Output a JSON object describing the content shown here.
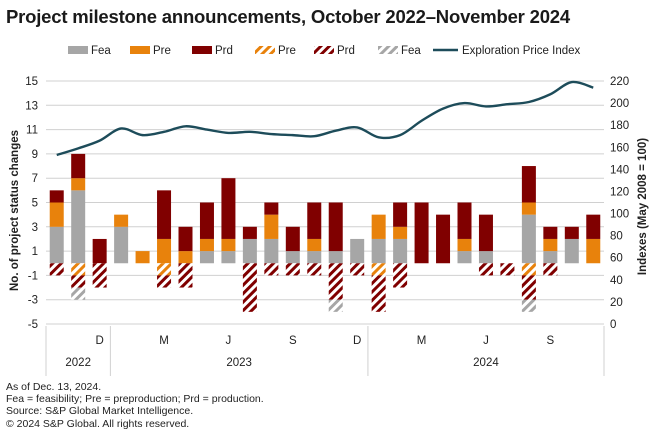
{
  "title": "Project milestone announcements, October 2022–November 2024",
  "colors": {
    "fea": "#a6a6a6",
    "pre": "#e8820c",
    "prd": "#800000",
    "line": "#1d4c5a",
    "grid": "#d0d0d0",
    "text": "#222222"
  },
  "chart_data": {
    "type": "bar",
    "stacked": true,
    "title": "Project milestone announcements, October 2022–November 2024",
    "ylabel": "No. of project status changes",
    "y2label": "Indexes (May 2008 = 100)",
    "ylim": [
      -5,
      15
    ],
    "y2lim": [
      0,
      220
    ],
    "yticks": [
      15,
      13,
      11,
      9,
      7,
      5,
      3,
      1,
      -1,
      -3,
      -5
    ],
    "y2ticks": [
      220,
      200,
      180,
      160,
      140,
      120,
      100,
      80,
      60,
      40,
      20,
      0
    ],
    "legend_position": "top",
    "legend": [
      {
        "key": "fea_up",
        "label": "Fea",
        "style": "solid"
      },
      {
        "key": "pre_up",
        "label": "Pre",
        "style": "solid"
      },
      {
        "key": "prd_up",
        "label": "Prd",
        "style": "solid"
      },
      {
        "key": "pre_down",
        "label": "Pre",
        "style": "hatched"
      },
      {
        "key": "prd_down",
        "label": "Prd",
        "style": "hatched"
      },
      {
        "key": "fea_down",
        "label": "Fea",
        "style": "hatched"
      },
      {
        "key": "epi",
        "label": "Exploration Price Index",
        "style": "line"
      }
    ],
    "categories": [
      "Oct 2022",
      "Nov 2022",
      "Dec 2022",
      "Jan 2023",
      "Feb 2023",
      "Mar 2023",
      "Apr 2023",
      "May 2023",
      "Jun 2023",
      "Jul 2023",
      "Aug 2023",
      "Sep 2023",
      "Oct 2023",
      "Nov 2023",
      "Dec 2023",
      "Jan 2024",
      "Feb 2024",
      "Mar 2024",
      "Apr 2024",
      "May 2024",
      "Jun 2024",
      "Jul 2024",
      "Aug 2024",
      "Sep 2024",
      "Oct 2024",
      "Nov 2024"
    ],
    "month_labels": [
      "",
      "",
      "D",
      "",
      "",
      "M",
      "",
      "",
      "J",
      "",
      "",
      "S",
      "",
      "",
      "D",
      "",
      "",
      "M",
      "",
      "",
      "J",
      "",
      "",
      "S",
      "",
      ""
    ],
    "year_groups": [
      {
        "label": "2022",
        "start": 0,
        "end": 2
      },
      {
        "label": "2023",
        "start": 3,
        "end": 14
      },
      {
        "label": "2024",
        "start": 15,
        "end": 25
      }
    ],
    "series": [
      {
        "name": "Fea",
        "key": "fea_up",
        "values": [
          3,
          6,
          0,
          3,
          0,
          0,
          0,
          1,
          1,
          2,
          2,
          1,
          1,
          1,
          2,
          2,
          2,
          0,
          0,
          1,
          1,
          0,
          4,
          1,
          2,
          0
        ]
      },
      {
        "name": "Pre",
        "key": "pre_up",
        "values": [
          2,
          1,
          0,
          1,
          1,
          2,
          1,
          1,
          1,
          0,
          2,
          0,
          1,
          0,
          0,
          2,
          1,
          0,
          0,
          1,
          0,
          0,
          1,
          1,
          0,
          2
        ]
      },
      {
        "name": "Prd",
        "key": "prd_up",
        "values": [
          1,
          2,
          2,
          0,
          0,
          4,
          2,
          3,
          5,
          1,
          1,
          2,
          3,
          4,
          0,
          0,
          2,
          5,
          4,
          3,
          3,
          0,
          3,
          1,
          1,
          2
        ]
      },
      {
        "name": "Pre",
        "key": "pre_down",
        "values": [
          0,
          -1,
          0,
          0,
          0,
          -1,
          0,
          0,
          0,
          0,
          0,
          0,
          0,
          0,
          0,
          -1,
          0,
          0,
          0,
          0,
          0,
          0,
          -1,
          0,
          0,
          0
        ]
      },
      {
        "name": "Prd",
        "key": "prd_down",
        "values": [
          -1,
          -1,
          -2,
          0,
          0,
          -1,
          -2,
          0,
          0,
          -4,
          -1,
          -1,
          -1,
          -3,
          -1,
          -3,
          -2,
          0,
          0,
          0,
          -1,
          -1,
          -2,
          -1,
          0,
          0
        ]
      },
      {
        "name": "Fea",
        "key": "fea_down",
        "values": [
          0,
          -1,
          0,
          0,
          0,
          0,
          0,
          0,
          0,
          0,
          0,
          0,
          0,
          -1,
          0,
          0,
          0,
          0,
          0,
          0,
          0,
          0,
          -1,
          0,
          0,
          0
        ]
      }
    ],
    "line_series": {
      "name": "Exploration Price Index",
      "key": "epi",
      "axis": "right",
      "x": [
        0,
        1,
        2,
        3,
        4,
        5,
        6,
        7,
        8,
        9,
        10,
        11,
        12,
        13,
        14,
        15,
        16,
        17,
        18,
        19,
        20,
        21,
        22,
        23,
        24,
        25
      ],
      "values": [
        153,
        159,
        166,
        177,
        171,
        174,
        179,
        176,
        173,
        174,
        172,
        171,
        170,
        175,
        178,
        169,
        171,
        184,
        195,
        200,
        197,
        199,
        201,
        208,
        219,
        214
      ]
    }
  },
  "notes": [
    "As of Dec. 13, 2024.",
    "Fea = feasibility; Pre = preproduction; Prd = production.",
    "Source: S&P Global Market Intelligence.",
    "© 2024 S&P Global. All rights reserved."
  ]
}
